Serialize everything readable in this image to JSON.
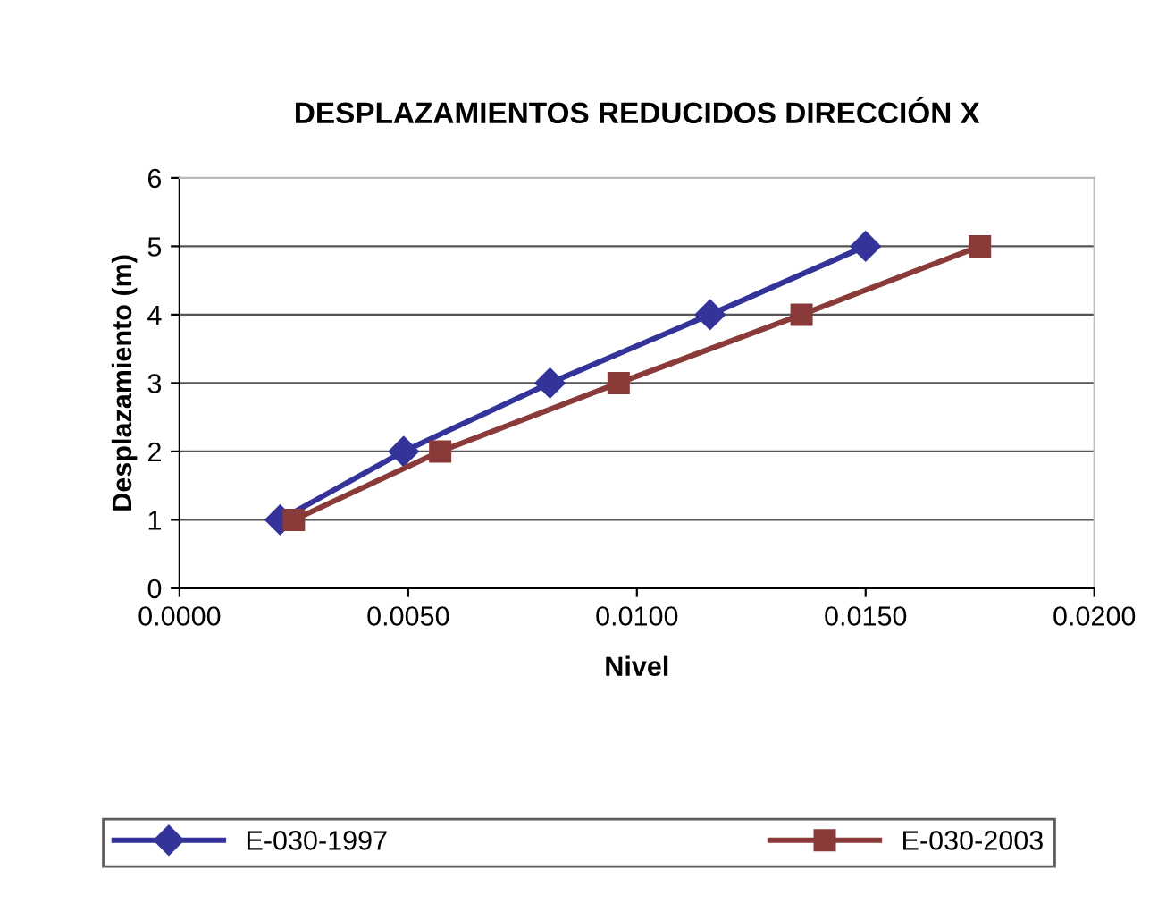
{
  "chart_data": {
    "type": "line",
    "title": "DESPLAZAMIENTOS REDUCIDOS DIRECCIÓN X",
    "xlabel": "Nivel",
    "ylabel": "Desplazamiento (m)",
    "series": [
      {
        "name": "E-030-1997",
        "color": "#33339a",
        "marker": "diamond",
        "x": [
          0.0022,
          0.0049,
          0.0081,
          0.0116,
          0.015
        ],
        "values": [
          1,
          2,
          3,
          4,
          5
        ]
      },
      {
        "name": "E-030-2003",
        "color": "#8b3a3a",
        "marker": "square",
        "x": [
          0.0025,
          0.0057,
          0.0096,
          0.0136,
          0.0175
        ],
        "values": [
          1,
          2,
          3,
          4,
          5
        ]
      }
    ],
    "xlim": [
      0,
      0.02
    ],
    "xticks": [
      {
        "value": 0,
        "label": "0.0000"
      },
      {
        "value": 0.005,
        "label": "0.0050"
      },
      {
        "value": 0.01,
        "label": "0.0100"
      },
      {
        "value": 0.015,
        "label": "0.0150"
      },
      {
        "value": 0.02,
        "label": "0.0200"
      }
    ],
    "ylim": [
      0,
      6
    ],
    "yticks": [
      0,
      1,
      2,
      3,
      4,
      5,
      6
    ],
    "grid": "y",
    "legend": "bottom",
    "line_style": "solid"
  }
}
